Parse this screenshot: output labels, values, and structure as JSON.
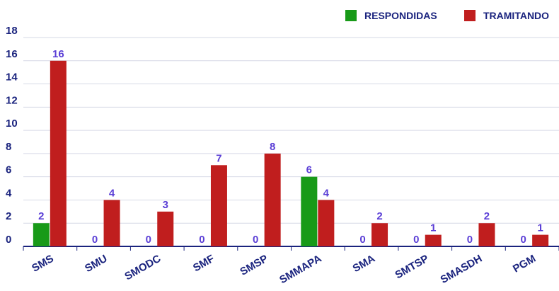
{
  "chart_data": {
    "type": "bar",
    "categories": [
      "SMS",
      "SMU",
      "SMODC",
      "SMF",
      "SMSP",
      "SMMAPA",
      "SMA",
      "SMTSP",
      "SMASDH",
      "PGM"
    ],
    "series": [
      {
        "name": "RESPONDIDAS",
        "color": "#189a18",
        "values": [
          2,
          0,
          0,
          0,
          0,
          6,
          0,
          0,
          0,
          0
        ]
      },
      {
        "name": "TRAMITANDO",
        "color": "#c01e1e",
        "values": [
          16,
          4,
          3,
          7,
          8,
          4,
          2,
          1,
          2,
          1
        ]
      }
    ],
    "ylim": [
      0,
      18
    ],
    "yticks": [
      0,
      2,
      4,
      6,
      8,
      10,
      12,
      14,
      16,
      18
    ],
    "grid": true,
    "legend": "top-right"
  }
}
